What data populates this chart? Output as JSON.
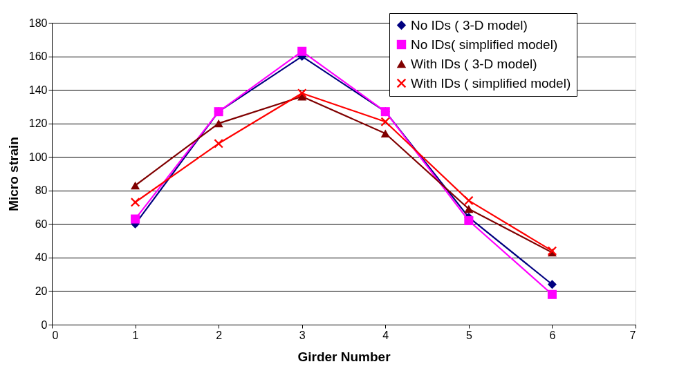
{
  "chart_data": {
    "type": "line",
    "xlabel": "Girder Number",
    "ylabel": "Micro strain",
    "x": [
      1,
      2,
      3,
      4,
      5,
      6
    ],
    "series": [
      {
        "name": "No IDs ( 3-D model)",
        "color": "#000080",
        "marker": "diamond",
        "values": [
          60,
          127,
          160,
          127,
          64,
          24
        ]
      },
      {
        "name": "No IDs( simplified model)",
        "color": "#ff00ff",
        "marker": "square",
        "values": [
          63,
          127,
          163,
          127,
          62,
          18
        ]
      },
      {
        "name": "With IDs ( 3-D model)",
        "color": "#800000",
        "marker": "triangle",
        "values": [
          83,
          120,
          136,
          114,
          69,
          43
        ]
      },
      {
        "name": "With IDs ( simplified model)",
        "color": "#ff0000",
        "marker": "cross",
        "values": [
          73,
          108,
          138,
          121,
          74,
          44
        ]
      }
    ],
    "xlim": [
      0,
      7
    ],
    "xticks": [
      0,
      1,
      2,
      3,
      4,
      5,
      6,
      7
    ],
    "ylim": [
      0,
      180
    ],
    "yticks": [
      0,
      20,
      40,
      60,
      80,
      100,
      120,
      140,
      160,
      180
    ],
    "grid": "y",
    "legend": "top right",
    "line_style": "solid"
  }
}
